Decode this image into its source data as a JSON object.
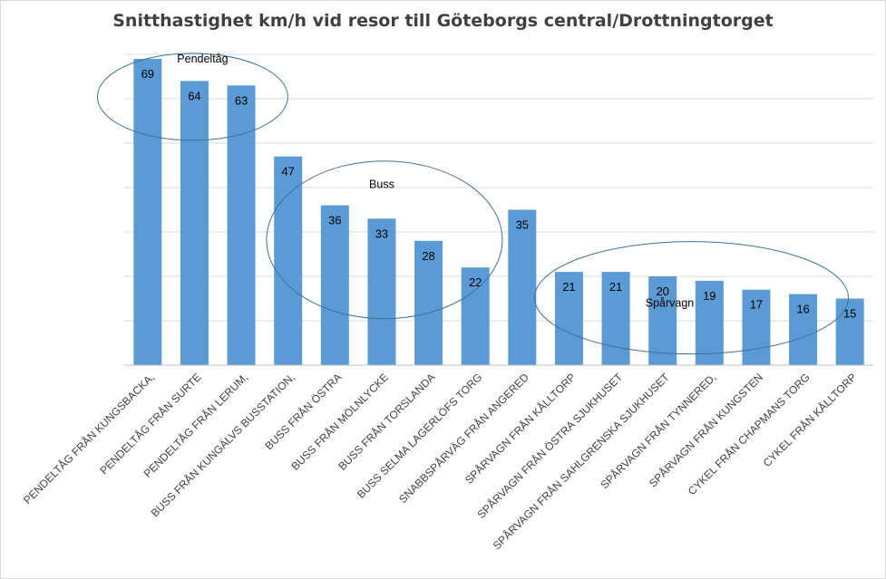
{
  "chart_data": {
    "type": "bar",
    "title": "Snitthastighet km/h vid resor till Göteborgs central/Drottningtorget",
    "xlabel": "",
    "ylabel": "",
    "ylim": [
      0,
      70
    ],
    "grid": true,
    "legend": "none",
    "bar_color": "#5b9bd5",
    "grid_color": "#d9d9d9",
    "annotation_color": "#41719c",
    "categories": [
      "PENDELTÅG FRÅN KUNGSBACKA,",
      "PENDELTÅG FRÅN SURTE",
      "PENDELTÅG FRÅN LERUM,",
      "BUSS FRÅN KUNGÄLVS BUSSTATION,",
      "BUSS FRÅN ÖSTRA",
      "BUSS FRÅN MÖLNLYCKE",
      "BUSS FRÅN TORSLANDA",
      "BUSS SELMA LAGERLÖFS TORG",
      "SNABBSPÅRVÄG FRÅN ANGERED",
      "SPÅRVAGN FRÅN KÅLLTORP",
      "SPÅRVAGN FRÅN ÖSTRA SJUKHUSET",
      "SPÅRVAGN FRÅN SAHLGRENSKA SJUKHUSET",
      "SPÅRVAGN FRÅN TYNNERED,",
      "SPÅRVAGN FRÅN KUNGSTEN",
      "CYKEL FRÅN CHAPMANS TORG",
      "CYKEL FRÅN KÅLLTORP"
    ],
    "values": [
      69,
      64,
      63,
      47,
      36,
      33,
      28,
      22,
      35,
      21,
      21,
      20,
      19,
      17,
      16,
      15
    ],
    "annotations": [
      {
        "label": "Pendeltåg",
        "first": 0,
        "last": 2
      },
      {
        "label": "Buss",
        "first": 3,
        "last": 7
      },
      {
        "label": "Spårvagn",
        "first": 9,
        "last": 14
      }
    ]
  }
}
